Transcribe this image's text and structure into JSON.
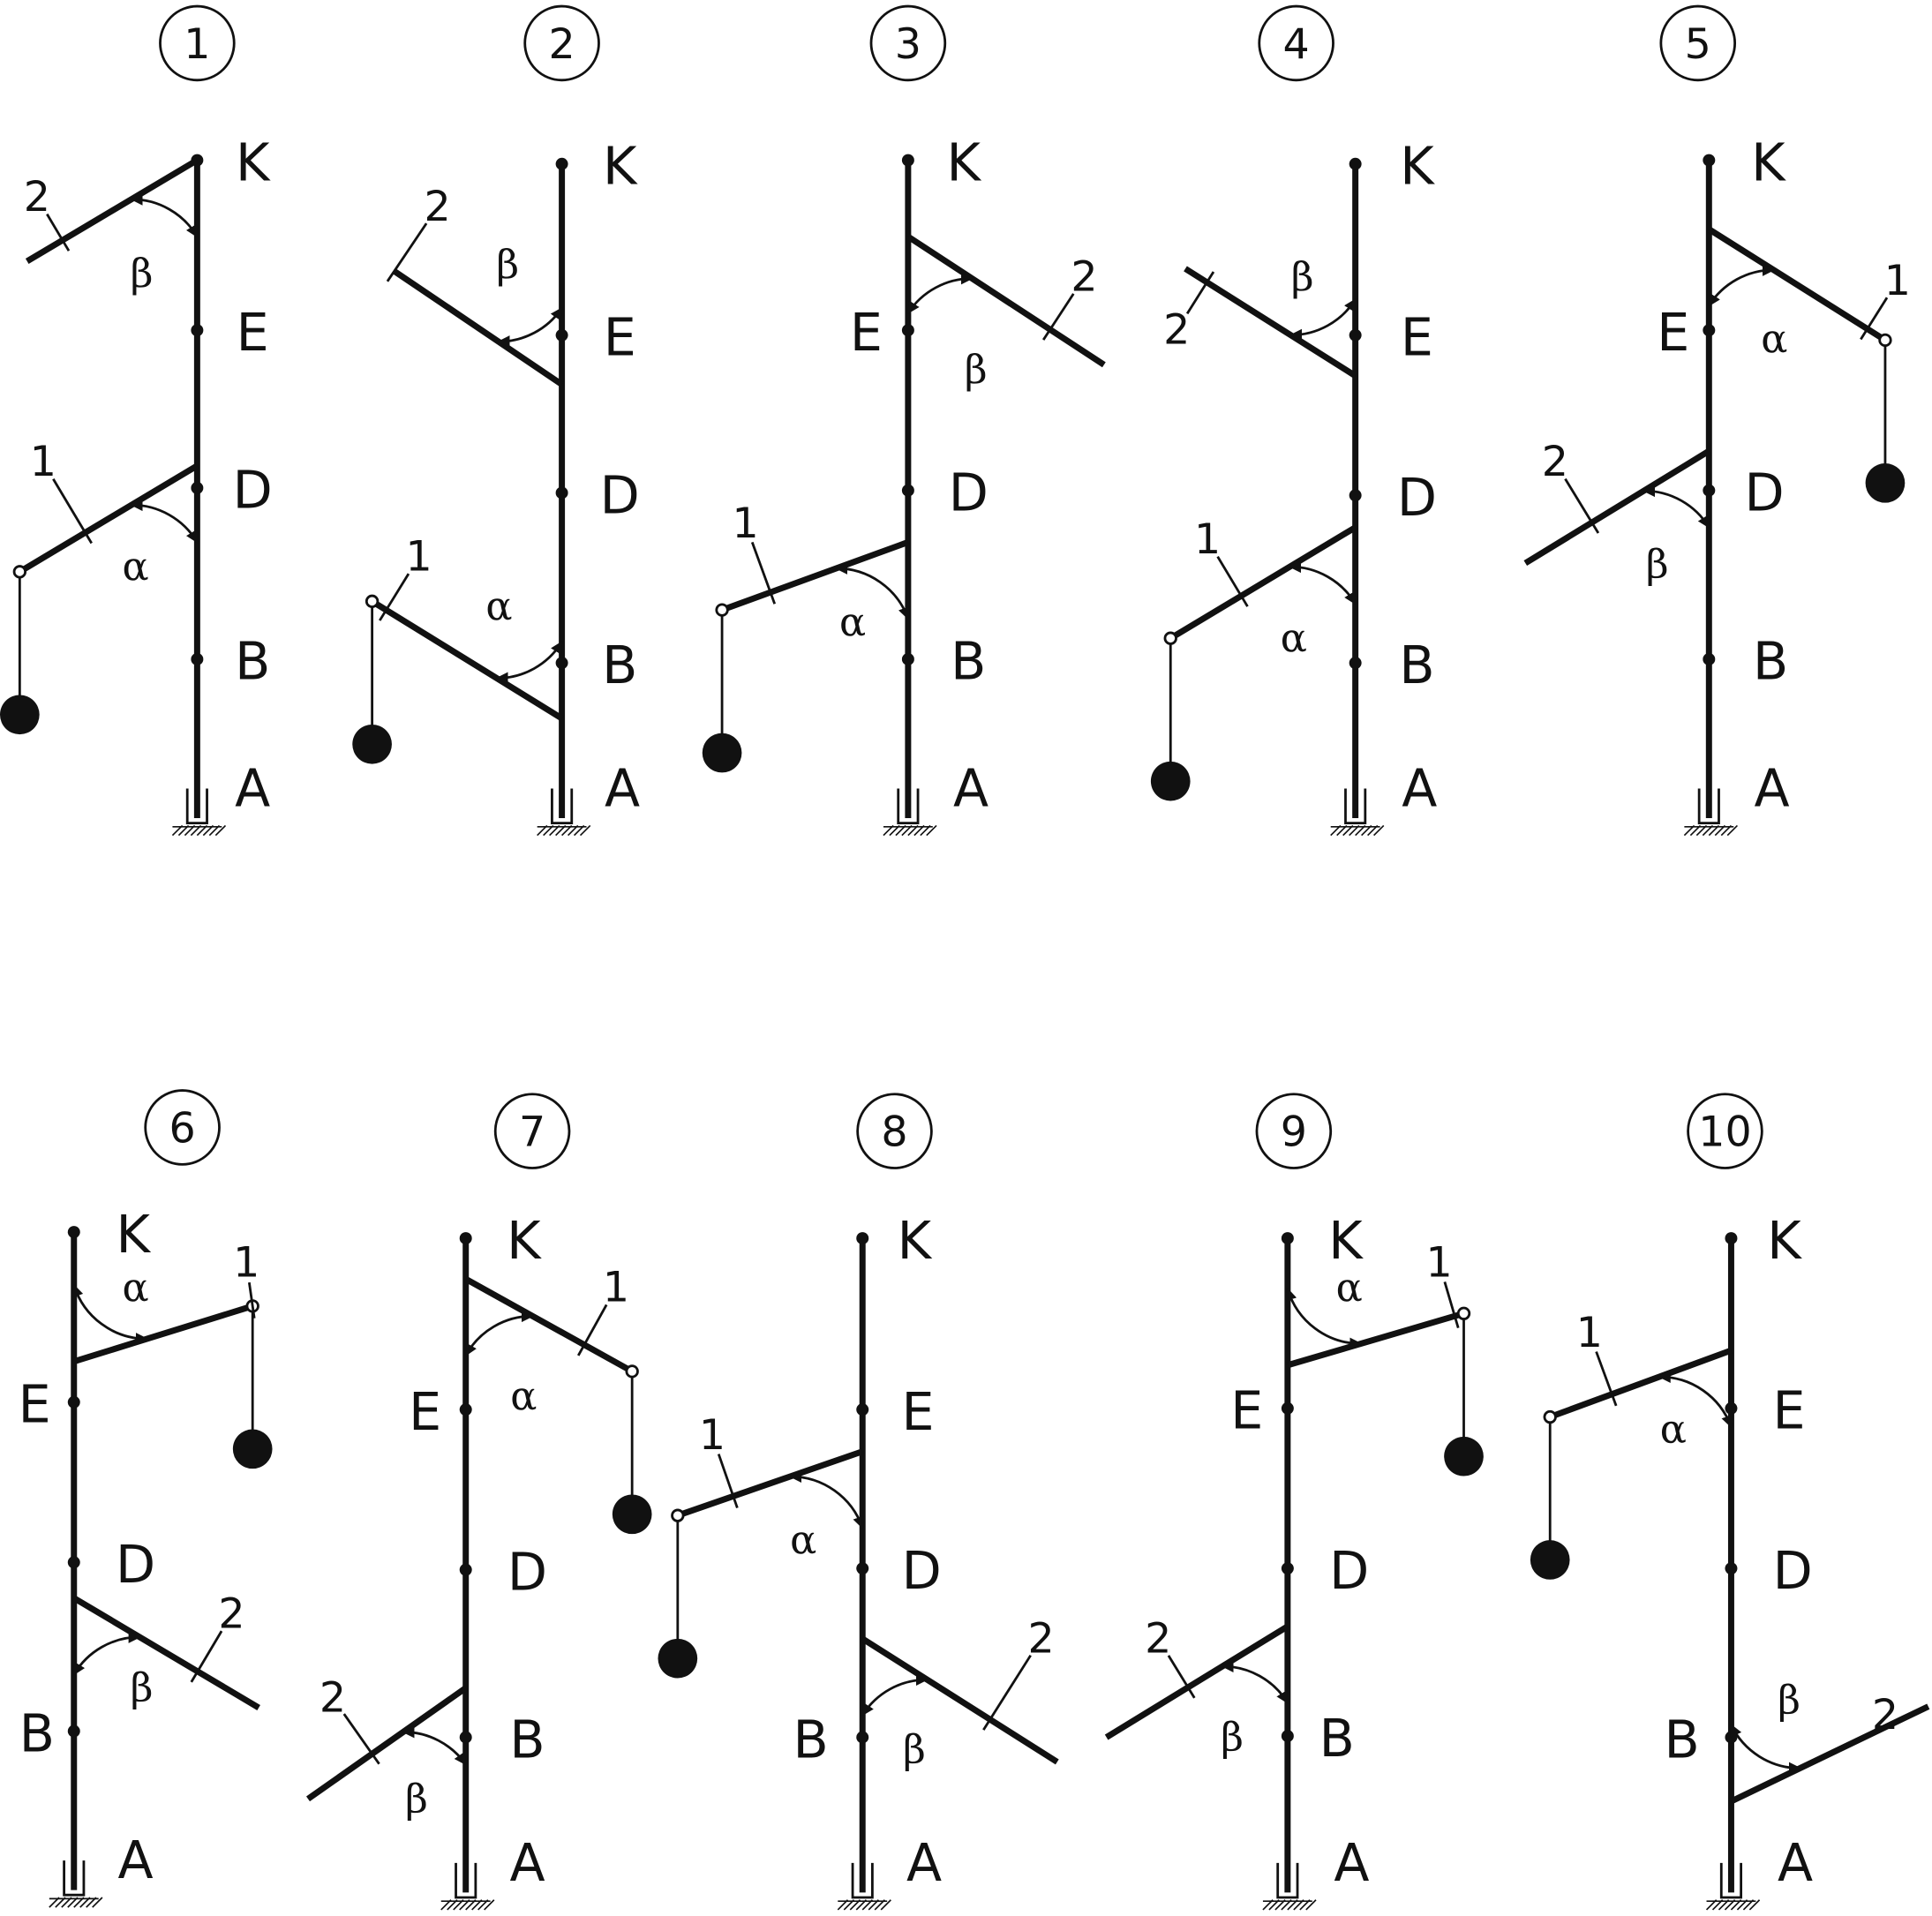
{
  "schemes": [
    {
      "number": "1",
      "K": "K",
      "E": "E",
      "D": "D",
      "B": "B",
      "A": "A",
      "rod1": "1",
      "rod2": "2",
      "alpha": "α",
      "beta": "β"
    },
    {
      "number": "2",
      "K": "K",
      "E": "E",
      "D": "D",
      "B": "B",
      "A": "A",
      "rod1": "1",
      "rod2": "2",
      "alpha": "α",
      "beta": "β"
    },
    {
      "number": "3",
      "K": "K",
      "E": "E",
      "D": "D",
      "B": "B",
      "A": "A",
      "rod1": "1",
      "rod2": "2",
      "alpha": "α",
      "beta": "β"
    },
    {
      "number": "4",
      "K": "K",
      "E": "E",
      "D": "D",
      "B": "B",
      "A": "A",
      "rod1": "1",
      "rod2": "2",
      "alpha": "α",
      "beta": "β"
    },
    {
      "number": "5",
      "K": "K",
      "E": "E",
      "D": "D",
      "B": "B",
      "A": "A",
      "rod1": "1",
      "rod2": "2",
      "alpha": "α",
      "beta": "β"
    },
    {
      "number": "6",
      "K": "K",
      "E": "E",
      "D": "D",
      "B": "B",
      "A": "A",
      "rod1": "1",
      "rod2": "2",
      "alpha": "α",
      "beta": "β"
    },
    {
      "number": "7",
      "K": "K",
      "E": "E",
      "D": "D",
      "B": "B",
      "A": "A",
      "rod1": "1",
      "rod2": "2",
      "alpha": "α",
      "beta": "β"
    },
    {
      "number": "8",
      "K": "K",
      "E": "E",
      "D": "D",
      "B": "B",
      "A": "A",
      "rod1": "1",
      "rod2": "2",
      "alpha": "α",
      "beta": "β"
    },
    {
      "number": "9",
      "K": "K",
      "E": "E",
      "D": "D",
      "B": "B",
      "A": "A",
      "rod1": "1",
      "rod2": "2",
      "alpha": "α",
      "beta": "β"
    },
    {
      "number": "10",
      "K": "K",
      "E": "E",
      "D": "D",
      "B": "B",
      "A": "A",
      "rod1": "1",
      "rod2": "2",
      "alpha": "α",
      "beta": "β"
    }
  ]
}
